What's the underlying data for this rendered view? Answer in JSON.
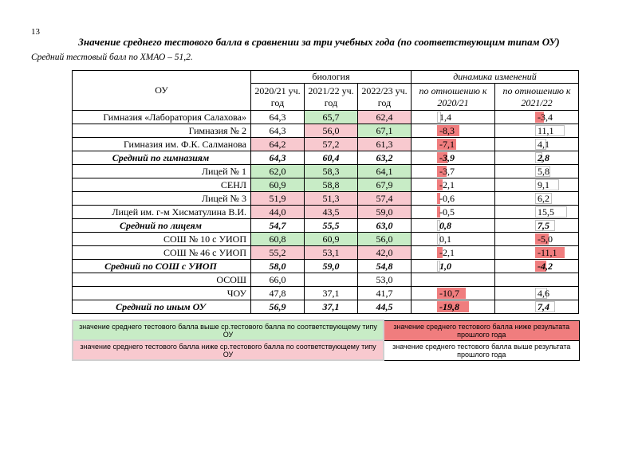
{
  "page_number": "13",
  "title": "Значение среднего тестового балла в сравнении за три учебных года (по соответствующим типам ОУ)",
  "subtitle": "Средний тестовый балл по ХМАО – 51,2.",
  "header": {
    "ou": "ОУ",
    "subject": "биология",
    "dynamics": "динамика изменений",
    "years": [
      "2020/21 уч. год",
      "2021/22 уч. год",
      "2022/23 уч. год"
    ],
    "dyn_cols": [
      "по отношению к 2020/21",
      "по отношению к 2021/22"
    ]
  },
  "rows": [
    {
      "name": "Гимназия «Лаборатория Салахова»",
      "v1": "64,3",
      "v2": "65,7",
      "v3": "62,4",
      "c1": "",
      "c2": "g",
      "c3": "r",
      "d1": "1,4",
      "d2": "-3,4",
      "d1n": 1.4,
      "d2n": -3.4,
      "avg": false
    },
    {
      "name": "Гимназия № 2",
      "v1": "64,3",
      "v2": "56,0",
      "v3": "67,1",
      "c1": "",
      "c2": "r",
      "c3": "g",
      "d1": "-8,3",
      "d2": "11,1",
      "d1n": -8.3,
      "d2n": 11.1,
      "avg": false
    },
    {
      "name": "Гимназия им. Ф.К. Салманова",
      "v1": "64,2",
      "v2": "57,2",
      "v3": "61,3",
      "c1": "r",
      "c2": "r",
      "c3": "r",
      "d1": "-7,1",
      "d2": "4,1",
      "d1n": -7.1,
      "d2n": 4.1,
      "avg": false
    },
    {
      "name": "Средний по гимназиям",
      "v1": "64,3",
      "v2": "60,4",
      "v3": "63,2",
      "c1": "",
      "c2": "",
      "c3": "",
      "d1": "-3,9",
      "d2": "2,8",
      "d1n": -3.9,
      "d2n": 2.8,
      "avg": true
    },
    {
      "name": "Лицей № 1",
      "v1": "62,0",
      "v2": "58,3",
      "v3": "64,1",
      "c1": "g",
      "c2": "g",
      "c3": "g",
      "d1": "-3,7",
      "d2": "5,8",
      "d1n": -3.7,
      "d2n": 5.8,
      "avg": false
    },
    {
      "name": "СЕНЛ",
      "v1": "60,9",
      "v2": "58,8",
      "v3": "67,9",
      "c1": "g",
      "c2": "g",
      "c3": "g",
      "d1": "-2,1",
      "d2": "9,1",
      "d1n": -2.1,
      "d2n": 9.1,
      "avg": false
    },
    {
      "name": "Лицей № 3",
      "v1": "51,9",
      "v2": "51,3",
      "v3": "57,4",
      "c1": "r",
      "c2": "r",
      "c3": "r",
      "d1": "-0,6",
      "d2": "6,2",
      "d1n": -0.6,
      "d2n": 6.2,
      "avg": false
    },
    {
      "name": "Лицей им. г-м Хисматулина В.И.",
      "v1": "44,0",
      "v2": "43,5",
      "v3": "59,0",
      "c1": "r",
      "c2": "r",
      "c3": "r",
      "d1": "-0,5",
      "d2": "15,5",
      "d1n": -0.5,
      "d2n": 15.5,
      "avg": false
    },
    {
      "name": "Средний по лицеям",
      "v1": "54,7",
      "v2": "55,5",
      "v3": "63,0",
      "c1": "",
      "c2": "",
      "c3": "",
      "d1": "0,8",
      "d2": "7,5",
      "d1n": 0.8,
      "d2n": 7.5,
      "avg": true
    },
    {
      "name": "СОШ № 10 с УИОП",
      "v1": "60,8",
      "v2": "60,9",
      "v3": "56,0",
      "c1": "g",
      "c2": "g",
      "c3": "g",
      "d1": "0,1",
      "d2": "-5,0",
      "d1n": 0.1,
      "d2n": -5.0,
      "avg": false
    },
    {
      "name": "СОШ № 46 с УИОП",
      "v1": "55,2",
      "v2": "53,1",
      "v3": "42,0",
      "c1": "r",
      "c2": "r",
      "c3": "r",
      "d1": "-2,1",
      "d2": "-11,1",
      "d1n": -2.1,
      "d2n": -11.1,
      "avg": false
    },
    {
      "name": "Средний по СОШ с УИОП",
      "v1": "58,0",
      "v2": "59,0",
      "v3": "54,8",
      "c1": "",
      "c2": "",
      "c3": "",
      "d1": "1,0",
      "d2": "-4,2",
      "d1n": 1.0,
      "d2n": -4.2,
      "avg": true
    },
    {
      "name": "ОСОШ",
      "v1": "66,0",
      "v2": "",
      "v3": "53,0",
      "c1": "",
      "c2": "",
      "c3": "",
      "d1": "",
      "d2": "",
      "d1n": null,
      "d2n": null,
      "avg": false
    },
    {
      "name": "ЧОУ",
      "v1": "47,8",
      "v2": "37,1",
      "v3": "41,7",
      "c1": "",
      "c2": "",
      "c3": "",
      "d1": "-10,7",
      "d2": "4,6",
      "d1n": -10.7,
      "d2n": 4.6,
      "avg": false
    },
    {
      "name": "Средний по иным ОУ",
      "v1": "56,9",
      "v2": "37,1",
      "v3": "44,5",
      "c1": "",
      "c2": "",
      "c3": "",
      "d1": "-19,8",
      "d2": "7,4",
      "d1n": -19.8,
      "d2n": 7.4,
      "avg": true
    }
  ],
  "legend": {
    "above": "значение среднего тестового балла выше ср.тестового балла по соответствующему типу ОУ",
    "below_prev": "значение среднего тестового балла ниже результата прошлого года",
    "below": "значение среднего тестового балла ниже ср.тестового балла по соответствующему типу ОУ",
    "above_prev": "значение среднего тестового балла выше результата прошлого года"
  },
  "colors": {
    "above_type": "#c8ecc6",
    "below_type": "#f8c9cf",
    "below_prev": "#f07d7e",
    "above_prev": "#ffffff"
  }
}
